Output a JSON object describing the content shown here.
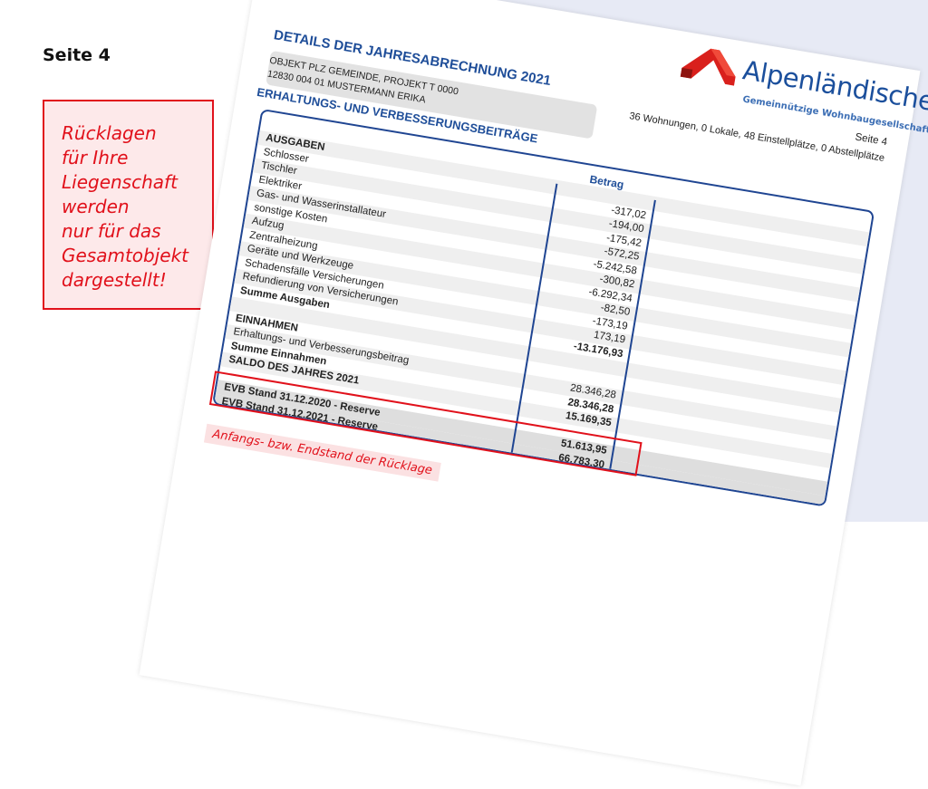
{
  "slide": {
    "title": "Seite 4",
    "note_lines": [
      "Rücklagen",
      "für Ihre",
      "Liegenschaft",
      "werden",
      "nur für das",
      "Gesamtobjekt",
      "dargestellt!"
    ],
    "tag": "Anfangs- bzw. Endstand der Rücklage",
    "accent_color": "#e1111b"
  },
  "document": {
    "title": "DETAILS DER JAHRESABRECHNUNG 2021",
    "object_line1": "OBJEKT PLZ GEMEINDE, PROJEKT T 0000",
    "object_line2": "12830 004 01 MUSTERMANN ERIKA",
    "section_heading": "ERHALTUNGS- UND VERBESSERUNGSBEITRÄGE",
    "logo": {
      "name": "Alpenländische",
      "subtitle": "Gemeinnützige Wohnbaugesellschaft"
    },
    "page_no": "Seite 4",
    "units": "36 Wohnungen, 0 Lokale, 48 Einstellplätze, 0 Abstellplätze",
    "column_header": "Betrag",
    "rows": [
      {
        "label": "AUSGABEN",
        "value": "",
        "bold": true
      },
      {
        "label": "Schlosser",
        "value": "-317,02"
      },
      {
        "label": "Tischler",
        "value": "-194,00"
      },
      {
        "label": "Elektriker",
        "value": "-175,42"
      },
      {
        "label": "Gas- und Wasserinstallateur",
        "value": "-572,25"
      },
      {
        "label": "sonstige Kosten",
        "value": "-5.242,58"
      },
      {
        "label": "Aufzug",
        "value": "-300,82"
      },
      {
        "label": "Zentralheizung",
        "value": "-6.292,34"
      },
      {
        "label": "Geräte und Werkzeuge",
        "value": "-82,50"
      },
      {
        "label": "Schadensfälle Versicherungen",
        "value": "-173,19"
      },
      {
        "label": "Refundierung von Versicherungen",
        "value": "173,19"
      },
      {
        "label": "Summe Ausgaben",
        "value": "-13.176,93",
        "bold": true
      },
      {
        "label": "",
        "value": ""
      },
      {
        "label": "EINNAHMEN",
        "value": "",
        "bold": true
      },
      {
        "label": "Erhaltungs- und Verbesserungsbeitrag",
        "value": "28.346,28"
      },
      {
        "label": "Summe Einnahmen",
        "value": "28.346,28",
        "bold": true
      },
      {
        "label": "SALDO DES JAHRES 2021",
        "value": "15.169,35",
        "bold": true
      },
      {
        "label": "",
        "value": ""
      },
      {
        "label": "EVB Stand 31.12.2020 - Reserve",
        "value": "51.613,95",
        "bold": true
      },
      {
        "label": "EVB Stand 31.12.2021 - Reserve",
        "value": "66.783,30",
        "bold": true
      }
    ]
  }
}
